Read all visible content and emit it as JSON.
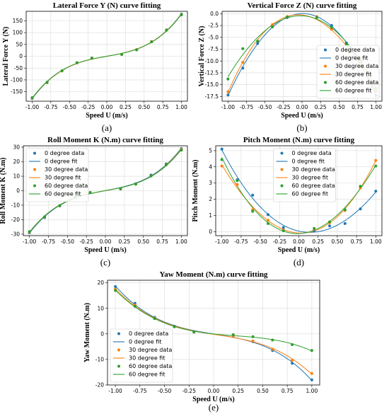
{
  "legend_labels": [
    "0 degree data",
    "0 degree fit",
    "30 degree data",
    "30 degree fit",
    "60 degree data",
    "60 degree fit"
  ],
  "colors": {
    "s0": "#1f77b4",
    "s30": "#ff7f0e",
    "s60": "#2ca02c",
    "grid": "#d9d9d9",
    "axis": "#000000"
  },
  "chart_data": [
    {
      "id": "a",
      "type": "scatter",
      "caption": "(a)",
      "title": "Lateral Force Y (N) curve fitting",
      "xlabel": "Speed U (m/s)",
      "ylabel": "Lateral Force Y (N)",
      "xlim": [
        -1.08,
        1.08
      ],
      "ylim": [
        -190,
        190
      ],
      "xticks": [
        "-1.00",
        "-0.75",
        "-0.50",
        "-0.25",
        "0.00",
        "0.25",
        "0.50",
        "0.75",
        "1.00"
      ],
      "yticks": [
        -150,
        -100,
        -50,
        0,
        50,
        100,
        150
      ],
      "legend": "none",
      "grid": true,
      "x": [
        -1.0,
        -0.8,
        -0.6,
        -0.4,
        -0.2,
        0.2,
        0.4,
        0.6,
        0.8,
        1.0
      ],
      "series": [
        {
          "values": [
            -178,
            -112,
            -62,
            -28,
            -8,
            8,
            28,
            62,
            112,
            178
          ]
        },
        {
          "values": [
            -176,
            -111,
            -62,
            -28,
            -8,
            8,
            28,
            62,
            111,
            176
          ]
        },
        {
          "values": [
            -175,
            -110,
            -61,
            -27,
            -8,
            8,
            27,
            61,
            110,
            175
          ]
        }
      ]
    },
    {
      "id": "b",
      "type": "scatter",
      "caption": "(b)",
      "title": "Vertical Force Z (N) curve fitting",
      "xlabel": "Speed U (m/s)",
      "ylabel": "Vertical Force Z (N)",
      "xlim": [
        -1.08,
        1.08
      ],
      "ylim": [
        -18.5,
        0.5
      ],
      "xticks": [
        "-1.00",
        "-0.75",
        "-0.50",
        "-0.25",
        "0.00",
        "0.25",
        "0.50",
        "0.75",
        "1.00"
      ],
      "yticks": [
        "0.0",
        "-2.5",
        "-5.0",
        "-7.5",
        "-10.0",
        "-12.5",
        "-15.0",
        "-17.5"
      ],
      "yticks_values": [
        0,
        -2.5,
        -5,
        -7.5,
        -10,
        -12.5,
        -15,
        -17.5
      ],
      "legend": "lower-right",
      "grid": true,
      "x": [
        -1.0,
        -0.8,
        -0.6,
        -0.4,
        -0.2,
        0.2,
        0.4,
        0.6,
        0.8,
        1.0
      ],
      "series": [
        {
          "values": [
            -17.2,
            -11.5,
            -6.3,
            -2.7,
            -0.8,
            -0.7,
            -2.5,
            -6.2,
            -11.0,
            -17.3
          ]
        },
        {
          "values": [
            -16.5,
            -10.3,
            -5.8,
            -2.3,
            -0.6,
            -0.6,
            -3.3,
            -7.8,
            -10.8,
            -16.4
          ]
        },
        {
          "values": [
            -13.8,
            -7.4,
            -5.8,
            -2.8,
            -0.7,
            -0.8,
            -2.9,
            -6.5,
            -10.0,
            -15.8
          ]
        }
      ]
    },
    {
      "id": "c",
      "type": "scatter",
      "caption": "(c)",
      "title": "Roll Moment K (N.m) curve fitting",
      "xlabel": "Speed U (m/s)",
      "ylabel": "Roll Moment K (N.m)",
      "xlim": [
        -1.08,
        1.08
      ],
      "ylim": [
        -31,
        31
      ],
      "xticks": [
        "-1.00",
        "-0.75",
        "-0.50",
        "-0.25",
        "0.00",
        "0.25",
        "0.50",
        "0.75",
        "1.00"
      ],
      "yticks": [
        -30,
        -20,
        -10,
        0,
        10,
        20,
        30
      ],
      "legend": "upper-left",
      "grid": true,
      "x": [
        -1.0,
        -0.8,
        -0.6,
        -0.4,
        -0.2,
        0.2,
        0.4,
        0.6,
        0.8,
        1.0
      ],
      "series": [
        {
          "values": [
            -29,
            -18.5,
            -10.5,
            -4.5,
            -1.3,
            1.3,
            4.8,
            10.8,
            18.5,
            29
          ]
        },
        {
          "values": [
            -28.5,
            -18,
            -10.3,
            -4.5,
            -1.2,
            1.2,
            4.6,
            10.3,
            18,
            28.5
          ]
        },
        {
          "values": [
            -28.2,
            -18,
            -10.2,
            -4.4,
            -1.2,
            1.2,
            4.5,
            10.2,
            17.8,
            28
          ]
        }
      ]
    },
    {
      "id": "d",
      "type": "scatter",
      "caption": "(d)",
      "title": "Pitch Moment (N.m) curve fitting",
      "xlabel": "Speed U (m/s)",
      "ylabel": "Pitch Moment (N.m)",
      "xlim": [
        -1.08,
        1.08
      ],
      "ylim": [
        -0.25,
        5.3
      ],
      "xticks": [
        "-1.00",
        "-0.75",
        "-0.50",
        "-0.25",
        "0.00",
        "0.25",
        "0.50",
        "0.75",
        "1.00"
      ],
      "yticks": [
        0,
        1,
        2,
        3,
        4,
        5
      ],
      "legend": "upper-center",
      "grid": true,
      "x": [
        -1.0,
        -0.8,
        -0.6,
        -0.4,
        -0.2,
        0.2,
        0.4,
        0.6,
        0.8,
        1.0
      ],
      "series": [
        {
          "values": [
            5.1,
            3.2,
            2.25,
            1.05,
            0.25,
            0.05,
            0.35,
            0.5,
            1.4,
            2.5
          ]
        },
        {
          "values": [
            4.05,
            2.9,
            1.35,
            0.7,
            0.1,
            0.15,
            0.55,
            1.3,
            2.7,
            4.4
          ]
        },
        {
          "values": [
            4.45,
            3.15,
            1.25,
            0.5,
            0.05,
            0.2,
            0.6,
            1.35,
            2.8,
            4.05
          ]
        }
      ]
    },
    {
      "id": "e",
      "type": "scatter",
      "caption": "(e)",
      "title": "Yaw Moment (N.m) curve fitting",
      "xlabel": "Speed U (m/s)",
      "ylabel": "Yaw Moment (N.m)",
      "xlim": [
        -1.08,
        1.08
      ],
      "ylim": [
        -20,
        21
      ],
      "xticks": [
        "-1.00",
        "-0.75",
        "-0.50",
        "-0.25",
        "0.00",
        "0.25",
        "0.50",
        "0.75",
        "1.00"
      ],
      "yticks": [
        -20,
        -10,
        0,
        10,
        20
      ],
      "legend": "lower-left",
      "grid": true,
      "x": [
        -1.0,
        -0.8,
        -0.6,
        -0.4,
        -0.2,
        0.2,
        0.4,
        0.6,
        0.8,
        1.0
      ],
      "series": [
        {
          "values": [
            18.5,
            12,
            6.5,
            3,
            0.8,
            -0.8,
            -3,
            -6.5,
            -11.5,
            -18
          ]
        },
        {
          "values": [
            17.5,
            11.3,
            6.2,
            2.8,
            0.7,
            -0.7,
            -2.8,
            -6,
            -10.3,
            -15.5
          ]
        },
        {
          "values": [
            17,
            10.8,
            6,
            2.8,
            0.7,
            -0.3,
            -1.1,
            -2.4,
            -4.2,
            -6.5
          ]
        }
      ]
    }
  ]
}
